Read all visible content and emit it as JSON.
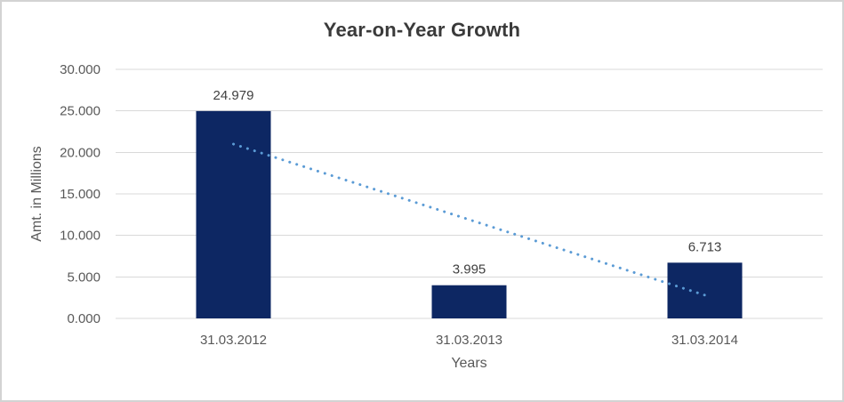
{
  "window": {
    "background": "#ffffff",
    "border_color": "#d3d3d3"
  },
  "chart_data": {
    "type": "bar",
    "title": "Year-on-Year Growth",
    "categories": [
      "31.03.2012",
      "31.03.2013",
      "31.03.2014"
    ],
    "values": [
      24.979,
      3.995,
      6.713
    ],
    "value_labels": [
      "24.979",
      "3.995",
      "6.713"
    ],
    "xlabel": "Years",
    "ylabel": "Amt. in Millions",
    "ylim": [
      0,
      30
    ],
    "ytick_values": [
      0,
      5,
      10,
      15,
      20,
      25,
      30
    ],
    "ytick_labels": [
      "0.000",
      "5.000",
      "10.000",
      "15.000",
      "20.000",
      "25.000",
      "30.000"
    ],
    "grid": true,
    "legend": "none",
    "trendline": {
      "type": "linear",
      "style": "dotted",
      "color": "#5b9bd5",
      "endpoint_values": [
        21.0,
        2.8
      ]
    },
    "colors": {
      "bar": "#0d2763",
      "gridline": "#d9d9d9",
      "axis_line": "#d9d9d9",
      "axis_text": "#595959",
      "data_label": "#404040",
      "title": "#3a3a3a"
    }
  }
}
